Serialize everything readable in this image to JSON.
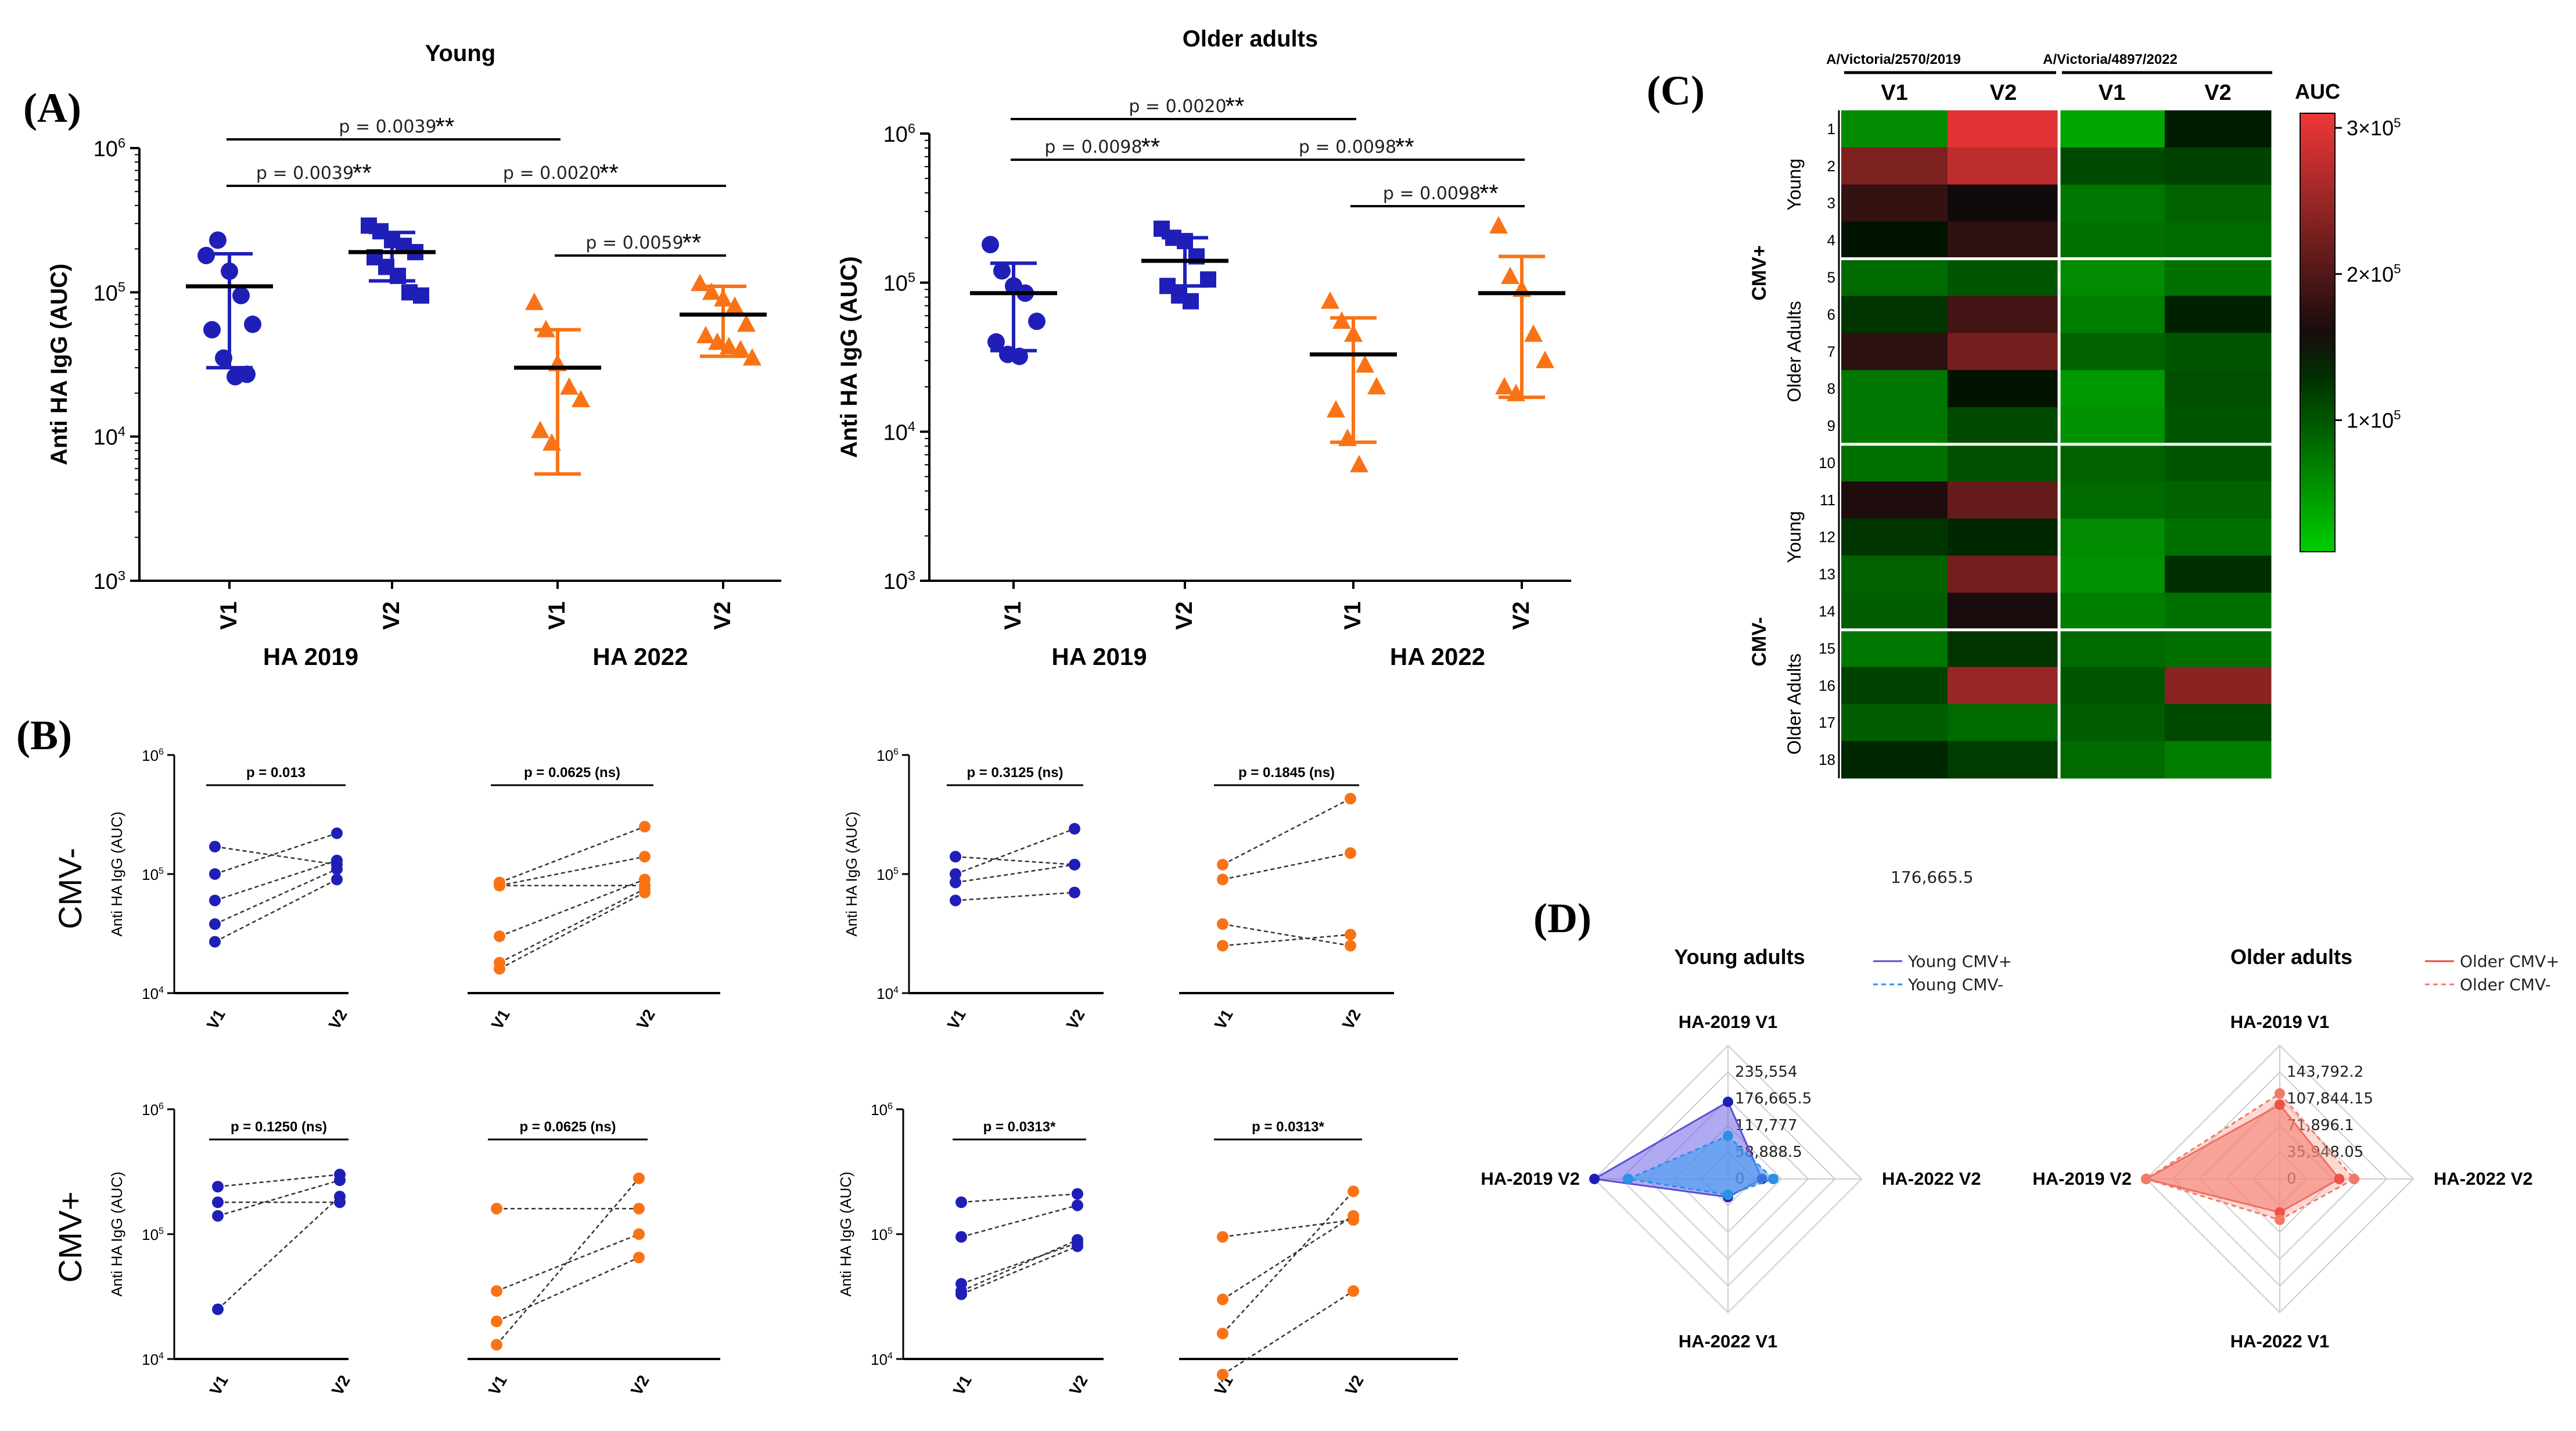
{
  "panels": {
    "A": "(A)",
    "B": "(B)",
    "C": "(C)",
    "D": "(D)"
  },
  "colors": {
    "blue": "#1f1fb8",
    "orange": "#f97316",
    "black": "#000000",
    "green": "#00cc00",
    "red": "#ee3333"
  },
  "chart_data": [
    {
      "id": "A_young",
      "type": "scatter",
      "title": "Young",
      "ylabel": "Anti HA IgG (AUC)",
      "yscale": "log",
      "ylim": [
        1000,
        1000000
      ],
      "ticks": [
        "10",
        "10",
        "10",
        "10"
      ],
      "tick_exp": [
        "3",
        "4",
        "5",
        "6"
      ],
      "categories": [
        "V1",
        "V2",
        "V1",
        "V2"
      ],
      "group_labels": [
        "HA 2019",
        "HA 2022"
      ],
      "group_colors": [
        "blue",
        "blue",
        "orange",
        "orange"
      ],
      "markers": [
        "circle",
        "square",
        "triangle",
        "triangle"
      ],
      "points": [
        [
          180000,
          230000,
          140000,
          95000,
          60000,
          55000,
          35000,
          26000,
          27000
        ],
        [
          290000,
          265000,
          230000,
          210000,
          190000,
          175000,
          150000,
          130000,
          100000,
          95000
        ],
        [
          85000,
          55000,
          32000,
          22000,
          18000,
          11000,
          9000
        ],
        [
          115000,
          100000,
          90000,
          80000,
          60000,
          50000,
          45000,
          42000,
          40000,
          35000
        ]
      ],
      "means": [
        110000,
        190000,
        30000,
        70000
      ],
      "err_lo": [
        30000,
        120000,
        5500,
        36000
      ],
      "err_hi": [
        185000,
        260000,
        55000,
        110000
      ],
      "brackets": [
        {
          "from": 0,
          "to": 2,
          "text": "p = 0.0039",
          "stars": "**"
        },
        {
          "from": 0,
          "to": 1,
          "text": "p = 0.0039",
          "stars": "**"
        },
        {
          "from": 1,
          "to": 3,
          "text": "p = 0.0020",
          "stars": "**"
        },
        {
          "from": 2,
          "to": 3,
          "text": "p = 0.0059",
          "stars": "**"
        }
      ]
    },
    {
      "id": "A_older",
      "type": "scatter",
      "title": "Older adults",
      "ylabel": "Anti HA IgG (AUC)",
      "yscale": "log",
      "ylim": [
        1000,
        1000000
      ],
      "ticks": [
        "10",
        "10",
        "10",
        "10"
      ],
      "tick_exp": [
        "3",
        "4",
        "5",
        "6"
      ],
      "categories": [
        "V1",
        "V2",
        "V1",
        "V2"
      ],
      "group_labels": [
        "HA 2019",
        "HA 2022"
      ],
      "group_colors": [
        "blue",
        "blue",
        "orange",
        "orange"
      ],
      "markers": [
        "circle",
        "square",
        "triangle",
        "triangle"
      ],
      "points": [
        [
          180000,
          120000,
          95000,
          85000,
          55000,
          40000,
          33000,
          32000
        ],
        [
          230000,
          200000,
          190000,
          150000,
          105000,
          95000,
          82000,
          75000
        ],
        [
          75000,
          55000,
          45000,
          28000,
          20000,
          14000,
          9000,
          6000
        ],
        [
          240000,
          110000,
          90000,
          45000,
          30000,
          20000,
          18000
        ]
      ],
      "means": [
        85000,
        140000,
        33000,
        85000
      ],
      "err_lo": [
        35000,
        95000,
        8500,
        17000
      ],
      "err_hi": [
        135000,
        200000,
        58000,
        150000
      ],
      "brackets": [
        {
          "from": 0,
          "to": 2,
          "text": "p = 0.0020",
          "stars": "**"
        },
        {
          "from": 0,
          "to": 1,
          "text": "p = 0.0098",
          "stars": "**"
        },
        {
          "from": 1,
          "to": 3,
          "text": "p = 0.0098",
          "stars": "**"
        },
        {
          "from": 2,
          "to": 3,
          "text": "p = 0.0098",
          "stars": "**"
        }
      ]
    },
    {
      "id": "B",
      "type": "line",
      "ylabel": "Anti HA IgG (AUC)",
      "ylim": [
        10000,
        1000000
      ],
      "ticks": [
        "10",
        "10",
        "10"
      ],
      "tick_exp": [
        "4",
        "5",
        "6"
      ],
      "categories": [
        "V1",
        "V2"
      ],
      "rows": [
        "CMV-",
        "CMV+"
      ],
      "plots": [
        {
          "row": 0,
          "color": "blue",
          "p": "p = 0.013",
          "pairs": [
            [
              170000,
              120000
            ],
            [
              100000,
              220000
            ],
            [
              60000,
              130000
            ],
            [
              38000,
              110000
            ],
            [
              27000,
              90000
            ]
          ]
        },
        {
          "row": 0,
          "color": "orange",
          "p": "p = 0.0625 (ns)",
          "pairs": [
            [
              85000,
              250000
            ],
            [
              80000,
              140000
            ],
            [
              80000,
              80000
            ],
            [
              30000,
              90000
            ],
            [
              18000,
              75000
            ],
            [
              16000,
              70000
            ]
          ]
        },
        {
          "row": 0,
          "color": "blue",
          "p": "p = 0.3125 (ns)",
          "pairs": [
            [
              140000,
              120000
            ],
            [
              100000,
              240000
            ],
            [
              85000,
              120000
            ],
            [
              60000,
              70000
            ]
          ]
        },
        {
          "row": 0,
          "color": "orange",
          "p": "p = 0.1845 (ns)",
          "pairs": [
            [
              120000,
              430000
            ],
            [
              90000,
              150000
            ],
            [
              38000,
              25000
            ],
            [
              25000,
              31000
            ]
          ]
        },
        {
          "row": 1,
          "color": "blue",
          "p": "p = 0.1250 (ns)",
          "pairs": [
            [
              240000,
              300000
            ],
            [
              180000,
              180000
            ],
            [
              140000,
              270000
            ],
            [
              25000,
              200000
            ]
          ]
        },
        {
          "row": 1,
          "color": "orange",
          "p": "p = 0.0625 (ns)",
          "pairs": [
            [
              160000,
              160000
            ],
            [
              35000,
              100000
            ],
            [
              20000,
              65000
            ],
            [
              13000,
              280000
            ]
          ]
        },
        {
          "row": 1,
          "color": "blue",
          "p": "p = 0.0313*",
          "pairs": [
            [
              180000,
              210000
            ],
            [
              95000,
              170000
            ],
            [
              40000,
              85000
            ],
            [
              35000,
              90000
            ],
            [
              33000,
              80000
            ]
          ]
        },
        {
          "row": 1,
          "color": "orange",
          "p": "p = 0.0313*",
          "pairs": [
            [
              95000,
              130000
            ],
            [
              30000,
              140000
            ],
            [
              16000,
              220000
            ],
            [
              7500,
              35000
            ]
          ]
        }
      ]
    },
    {
      "id": "C",
      "type": "heatmap",
      "col_groups": [
        "A/Victoria/2570/2019",
        "A/Victoria/4897/2022"
      ],
      "columns": [
        "V1",
        "V2",
        "V1",
        "V2"
      ],
      "rows": [
        "1",
        "2",
        "3",
        "4",
        "5",
        "6",
        "7",
        "8",
        "9",
        "10",
        "11",
        "12",
        "13",
        "14",
        "15",
        "16",
        "17",
        "18"
      ],
      "row_groups": [
        {
          "label": "CMV+",
          "sub": [
            {
              "label": "Young",
              "from": 0,
              "to": 3
            },
            {
              "label": "Older Adults",
              "from": 4,
              "to": 8
            }
          ]
        },
        {
          "label": "CMV-",
          "sub": [
            {
              "label": "Young",
              "from": 9,
              "to": 13
            },
            {
              "label": "Older Adults",
              "from": 14,
              "to": 17
            }
          ]
        }
      ],
      "values": [
        [
          60000,
          300000,
          40000,
          145000
        ],
        [
          230000,
          275000,
          110000,
          115000
        ],
        [
          180000,
          155000,
          75000,
          90000
        ],
        [
          150000,
          175000,
          80000,
          85000
        ],
        [
          85000,
          100000,
          60000,
          80000
        ],
        [
          125000,
          190000,
          70000,
          140000
        ],
        [
          175000,
          225000,
          90000,
          100000
        ],
        [
          75000,
          150000,
          50000,
          105000
        ],
        [
          75000,
          110000,
          55000,
          100000
        ],
        [
          80000,
          105000,
          90000,
          100000
        ],
        [
          165000,
          215000,
          85000,
          90000
        ],
        [
          125000,
          135000,
          60000,
          80000
        ],
        [
          90000,
          225000,
          55000,
          130000
        ],
        [
          95000,
          160000,
          70000,
          80000
        ],
        [
          75000,
          125000,
          85000,
          80000
        ],
        [
          115000,
          250000,
          100000,
          240000
        ],
        [
          95000,
          85000,
          95000,
          110000
        ],
        [
          135000,
          120000,
          85000,
          70000
        ]
      ],
      "colorbar": {
        "title": "AUC",
        "min": 10000,
        "max": 310000,
        "ticks": [
          {
            "value": 300000,
            "text": "3×10",
            "exp": "5"
          },
          {
            "value": 200000,
            "text": "2×10",
            "exp": "5"
          },
          {
            "value": 100000,
            "text": "1×10",
            "exp": "5"
          }
        ]
      }
    },
    {
      "id": "D_young",
      "type": "radar",
      "title": "Young adults",
      "axes": [
        "HA-2019 V1",
        "HA-2022 V2",
        "HA-2022 V1",
        "HA-2019 V2"
      ],
      "max": 294443,
      "ring_labels": [
        "235,554",
        "176,665.5",
        "117,777",
        "58,888.5",
        "0"
      ],
      "floating_label": "176,665.5",
      "series": [
        {
          "name": "Young CMV+",
          "values": [
            170000,
            75000,
            40000,
            294443
          ]
        },
        {
          "name": "Young CMV-",
          "values": [
            95000,
            100000,
            35000,
            220000
          ]
        }
      ]
    },
    {
      "id": "D_older",
      "type": "radar",
      "title": "Older adults",
      "axes": [
        "HA-2019 V1",
        "HA-2022 V2",
        "HA-2022 V1",
        "HA-2019 V2"
      ],
      "max": 179740,
      "ring_labels": [
        "143,792.2",
        "107,844.15",
        "71,896.1",
        "35,948.05",
        "0"
      ],
      "series": [
        {
          "name": "Older CMV+",
          "values": [
            100000,
            80000,
            45000,
            179740
          ]
        },
        {
          "name": "Older CMV-",
          "values": [
            115000,
            100000,
            55000,
            179740
          ]
        }
      ]
    }
  ]
}
